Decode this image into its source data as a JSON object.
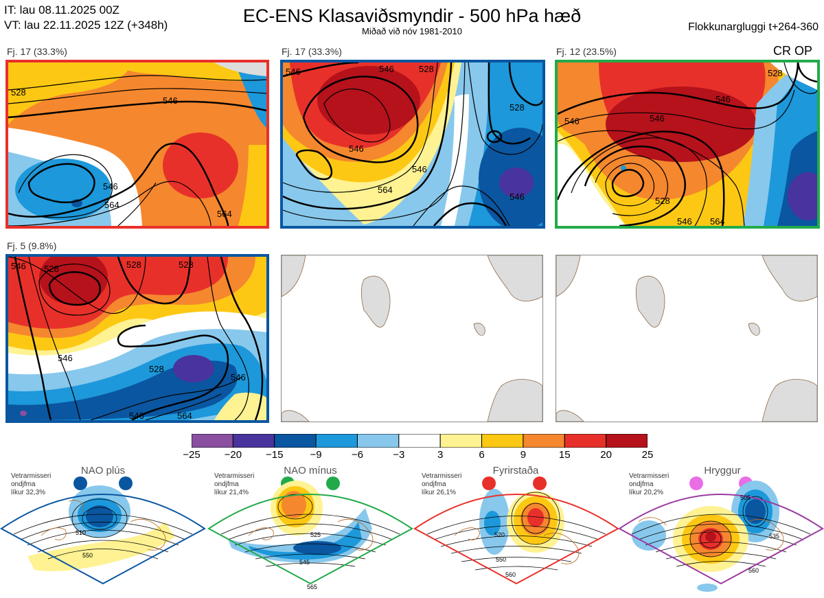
{
  "header": {
    "it_line": "IT: lau 08.11.2025 00Z",
    "vt_line": "VT: lau 22.11.2025 12Z  (+348h)",
    "title": "EC-ENS Klasaviðsmyndir - 500 hPa hæð",
    "subtitle": "Miðað við nóv 1981-2010",
    "window": "Flokkunargluggi t+264-360"
  },
  "clusters": [
    {
      "label": "Fj. 17 (33.3%)",
      "border_color": "#e8302a",
      "contours": [
        "528",
        "546",
        "546",
        "564",
        "564"
      ]
    },
    {
      "label": "Fj. 17 (33.3%)",
      "border_color": "#0a56a0",
      "contours": [
        "546",
        "546",
        "528",
        "546",
        "564",
        "546",
        "546",
        "528"
      ]
    },
    {
      "label": "Fj. 12 (23.5%)",
      "border_color": "#22aa4a",
      "contours": [
        "528",
        "546",
        "546",
        "546",
        "528",
        "546",
        "564"
      ],
      "tag": "CR OP"
    },
    {
      "label": "Fj. 5 (9.8%)",
      "border_color": "#0a56a0",
      "contours": [
        "546",
        "528",
        "528",
        "528",
        "546",
        "528",
        "546",
        "546",
        "564"
      ]
    }
  ],
  "colorbar": {
    "ticks": [
      "−25",
      "−20",
      "−15",
      "−9",
      "−6",
      "−3",
      "3",
      "6",
      "9",
      "15",
      "20",
      "25"
    ],
    "colors": [
      "#8a4fa0",
      "#49339c",
      "#0a56a0",
      "#1d98da",
      "#88c8ec",
      "#ffffff",
      "#fef293",
      "#fdc814",
      "#f5872e",
      "#e8302a",
      "#b5121b"
    ]
  },
  "regimes": [
    {
      "name": "NAO plús",
      "info": [
        "Vetrarmisseri",
        "ondjfma",
        "líkur 32,3%"
      ],
      "color": "#0a56a0",
      "contours": [
        "510",
        "550"
      ]
    },
    {
      "name": "NAO mínus",
      "info": [
        "Vetrarmisseri",
        "ondjfma",
        "líkur 21,4%"
      ],
      "color": "#22aa4a",
      "contours": [
        "525",
        "545",
        "565"
      ]
    },
    {
      "name": "Fyrirstaða",
      "info": [
        "Vetrarmisseri",
        "ondjfma",
        "líkur 26,1%"
      ],
      "color": "#e8302a",
      "contours": [
        "520",
        "550",
        "560"
      ]
    },
    {
      "name": "Hryggur",
      "info": [
        "Vetrarmisseri",
        "ondjfma",
        "líkur 20,2%"
      ],
      "color": "#e96ee6",
      "contours": [
        "505",
        "535",
        "560"
      ]
    }
  ]
}
